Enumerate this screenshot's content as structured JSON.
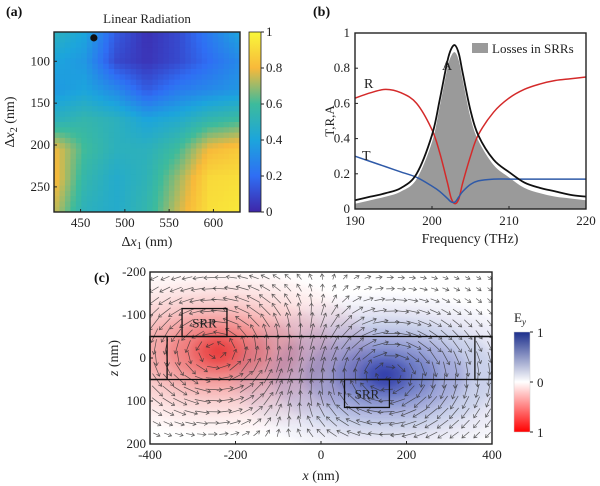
{
  "chart_data": [
    {
      "panel": "(a)",
      "type": "heatmap",
      "title": "Linear Radiation",
      "xlabel": "Δx1 (nm)",
      "ylabel": "Δx2 (nm)",
      "xlim": [
        420,
        630
      ],
      "ylim": [
        65,
        280
      ],
      "xticks": [
        450,
        500,
        550,
        600
      ],
      "yticks": [
        100,
        150,
        200,
        250
      ],
      "colorbar": {
        "min": 0,
        "max": 1,
        "ticks": [
          0,
          0.2,
          0.4,
          0.6,
          0.8,
          1
        ],
        "tick_labels": [
          "0",
          "0.2",
          "0.4",
          "0.6",
          "0.8",
          "1"
        ],
        "colormap": "parula"
      },
      "marker_point": {
        "x": 465,
        "y": 72
      },
      "grid_x": [
        420,
        455,
        490,
        525,
        560,
        595,
        630
      ],
      "grid_y": [
        65,
        100,
        135,
        170,
        205,
        240,
        280
      ],
      "values": [
        [
          0.5,
          0.4,
          0.15,
          0.03,
          0.1,
          0.25,
          0.4
        ],
        [
          0.4,
          0.35,
          0.1,
          0.04,
          0.1,
          0.2,
          0.3
        ],
        [
          0.35,
          0.4,
          0.3,
          0.15,
          0.25,
          0.3,
          0.35
        ],
        [
          0.5,
          0.55,
          0.5,
          0.4,
          0.45,
          0.55,
          0.6
        ],
        [
          0.8,
          0.6,
          0.5,
          0.5,
          0.6,
          0.8,
          0.85
        ],
        [
          0.82,
          0.55,
          0.45,
          0.52,
          0.7,
          0.9,
          0.92
        ],
        [
          0.75,
          0.5,
          0.45,
          0.55,
          0.75,
          0.92,
          0.95
        ]
      ]
    },
    {
      "panel": "(b)",
      "type": "line",
      "xlabel": "Frequency (THz)",
      "ylabel": "T,R,A",
      "xlim": [
        190,
        220
      ],
      "ylim": [
        0,
        1
      ],
      "xticks": [
        190,
        200,
        210,
        220
      ],
      "yticks": [
        0,
        0.2,
        0.4,
        0.6,
        0.8,
        1
      ],
      "ytick_labels": [
        "0",
        "0.2",
        "0.4",
        "0.6",
        "0.8",
        "1"
      ],
      "legend": {
        "label": "Losses in SRRs",
        "position": "top-right"
      },
      "x": [
        190,
        192,
        194,
        196,
        198,
        200,
        201,
        202,
        202.5,
        203,
        203.5,
        204,
        205,
        206,
        208,
        210,
        212,
        214,
        216,
        218,
        220
      ],
      "series": [
        {
          "name": "R",
          "color": "#d42a2a",
          "values": [
            0.63,
            0.66,
            0.68,
            0.66,
            0.6,
            0.45,
            0.32,
            0.15,
            0.06,
            0.03,
            0.06,
            0.15,
            0.3,
            0.42,
            0.55,
            0.63,
            0.68,
            0.71,
            0.73,
            0.74,
            0.75
          ]
        },
        {
          "name": "T",
          "color": "#2f5aa8",
          "values": [
            0.3,
            0.27,
            0.24,
            0.21,
            0.18,
            0.13,
            0.1,
            0.06,
            0.04,
            0.04,
            0.07,
            0.1,
            0.14,
            0.16,
            0.17,
            0.17,
            0.17,
            0.17,
            0.17,
            0.17,
            0.17
          ]
        },
        {
          "name": "A",
          "color": "#111111",
          "values": [
            0.05,
            0.07,
            0.09,
            0.12,
            0.2,
            0.42,
            0.62,
            0.84,
            0.91,
            0.93,
            0.88,
            0.77,
            0.56,
            0.42,
            0.28,
            0.21,
            0.15,
            0.12,
            0.1,
            0.08,
            0.07
          ]
        }
      ],
      "fill_series": {
        "name": "Losses in SRRs",
        "color": "#9a9a9a",
        "values": [
          0.03,
          0.05,
          0.07,
          0.1,
          0.17,
          0.38,
          0.58,
          0.8,
          0.87,
          0.89,
          0.84,
          0.73,
          0.52,
          0.39,
          0.25,
          0.18,
          0.12,
          0.09,
          0.07,
          0.06,
          0.05
        ]
      }
    },
    {
      "panel": "(c)",
      "type": "heatmap",
      "xlabel": "x (nm)",
      "ylabel": "z (nm)",
      "xlim": [
        -400,
        400
      ],
      "ylim": [
        -200,
        200
      ],
      "xticks": [
        -400,
        -200,
        0,
        200,
        400
      ],
      "yticks": [
        -200,
        -100,
        0,
        100,
        200
      ],
      "colorbar": {
        "title": "Ey",
        "ticks": [
          1,
          0,
          1
        ],
        "tick_labels": [
          "1",
          "0",
          "1"
        ],
        "colormap": "red-white-blue"
      },
      "structures": [
        {
          "name": "waveguide",
          "x": [
            -400,
            400
          ],
          "z": [
            -50,
            50
          ]
        },
        {
          "name": "end-cap-left",
          "x": [
            -400,
            -360
          ],
          "z": [
            -50,
            50
          ]
        },
        {
          "name": "end-cap-right",
          "x": [
            360,
            400
          ],
          "z": [
            -50,
            50
          ]
        },
        {
          "name": "SRR",
          "x": [
            -325,
            -220
          ],
          "z": [
            -115,
            -50
          ]
        },
        {
          "name": "SRR",
          "x": [
            55,
            160
          ],
          "z": [
            50,
            115
          ]
        }
      ],
      "labels": [
        "SRR",
        "SRR"
      ],
      "field_sources": [
        {
          "sign": -1,
          "x": -240,
          "z": -15,
          "strength": 1.0
        },
        {
          "sign": 1,
          "x": 150,
          "z": 40,
          "strength": 1.0
        }
      ]
    }
  ]
}
